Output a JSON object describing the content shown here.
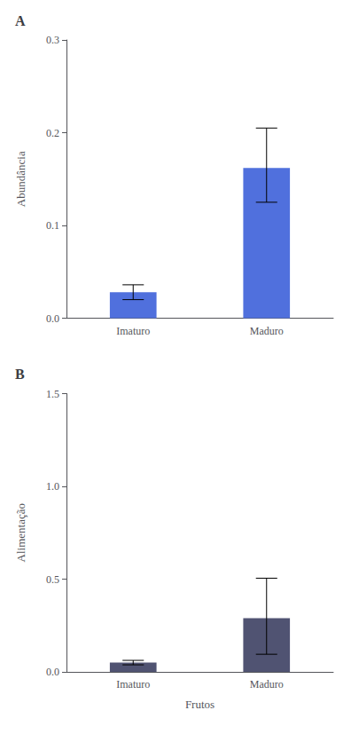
{
  "chart_data": [
    {
      "type": "bar",
      "title": "A",
      "categories": [
        "Imaturo",
        "Maduro"
      ],
      "values": [
        0.028,
        0.162
      ],
      "yerr_lower": [
        0.008,
        0.037
      ],
      "yerr_upper": [
        0.008,
        0.043
      ],
      "ylabel": "Abundância",
      "ylim": [
        0.0,
        0.3
      ],
      "yticks": [
        {
          "value": 0.0,
          "label": "0.0"
        },
        0.1,
        0.2,
        0.3
      ],
      "grid": false
    },
    {
      "type": "bar",
      "title": "B",
      "categories": [
        "Imaturo",
        "Maduro"
      ],
      "values": [
        0.05,
        0.29
      ],
      "yerr_lower": [
        0.012,
        0.195
      ],
      "yerr_upper": [
        0.012,
        0.215
      ],
      "ylabel": "Alimentação",
      "xlabel": "Frutos",
      "ylim": [
        0.0,
        1.5
      ],
      "yticks": [
        {
          "value": 0.0,
          "label": "0.0"
        },
        0.5,
        {
          "value": 1.0,
          "label": "1.0"
        },
        1.5
      ],
      "grid": false
    }
  ]
}
